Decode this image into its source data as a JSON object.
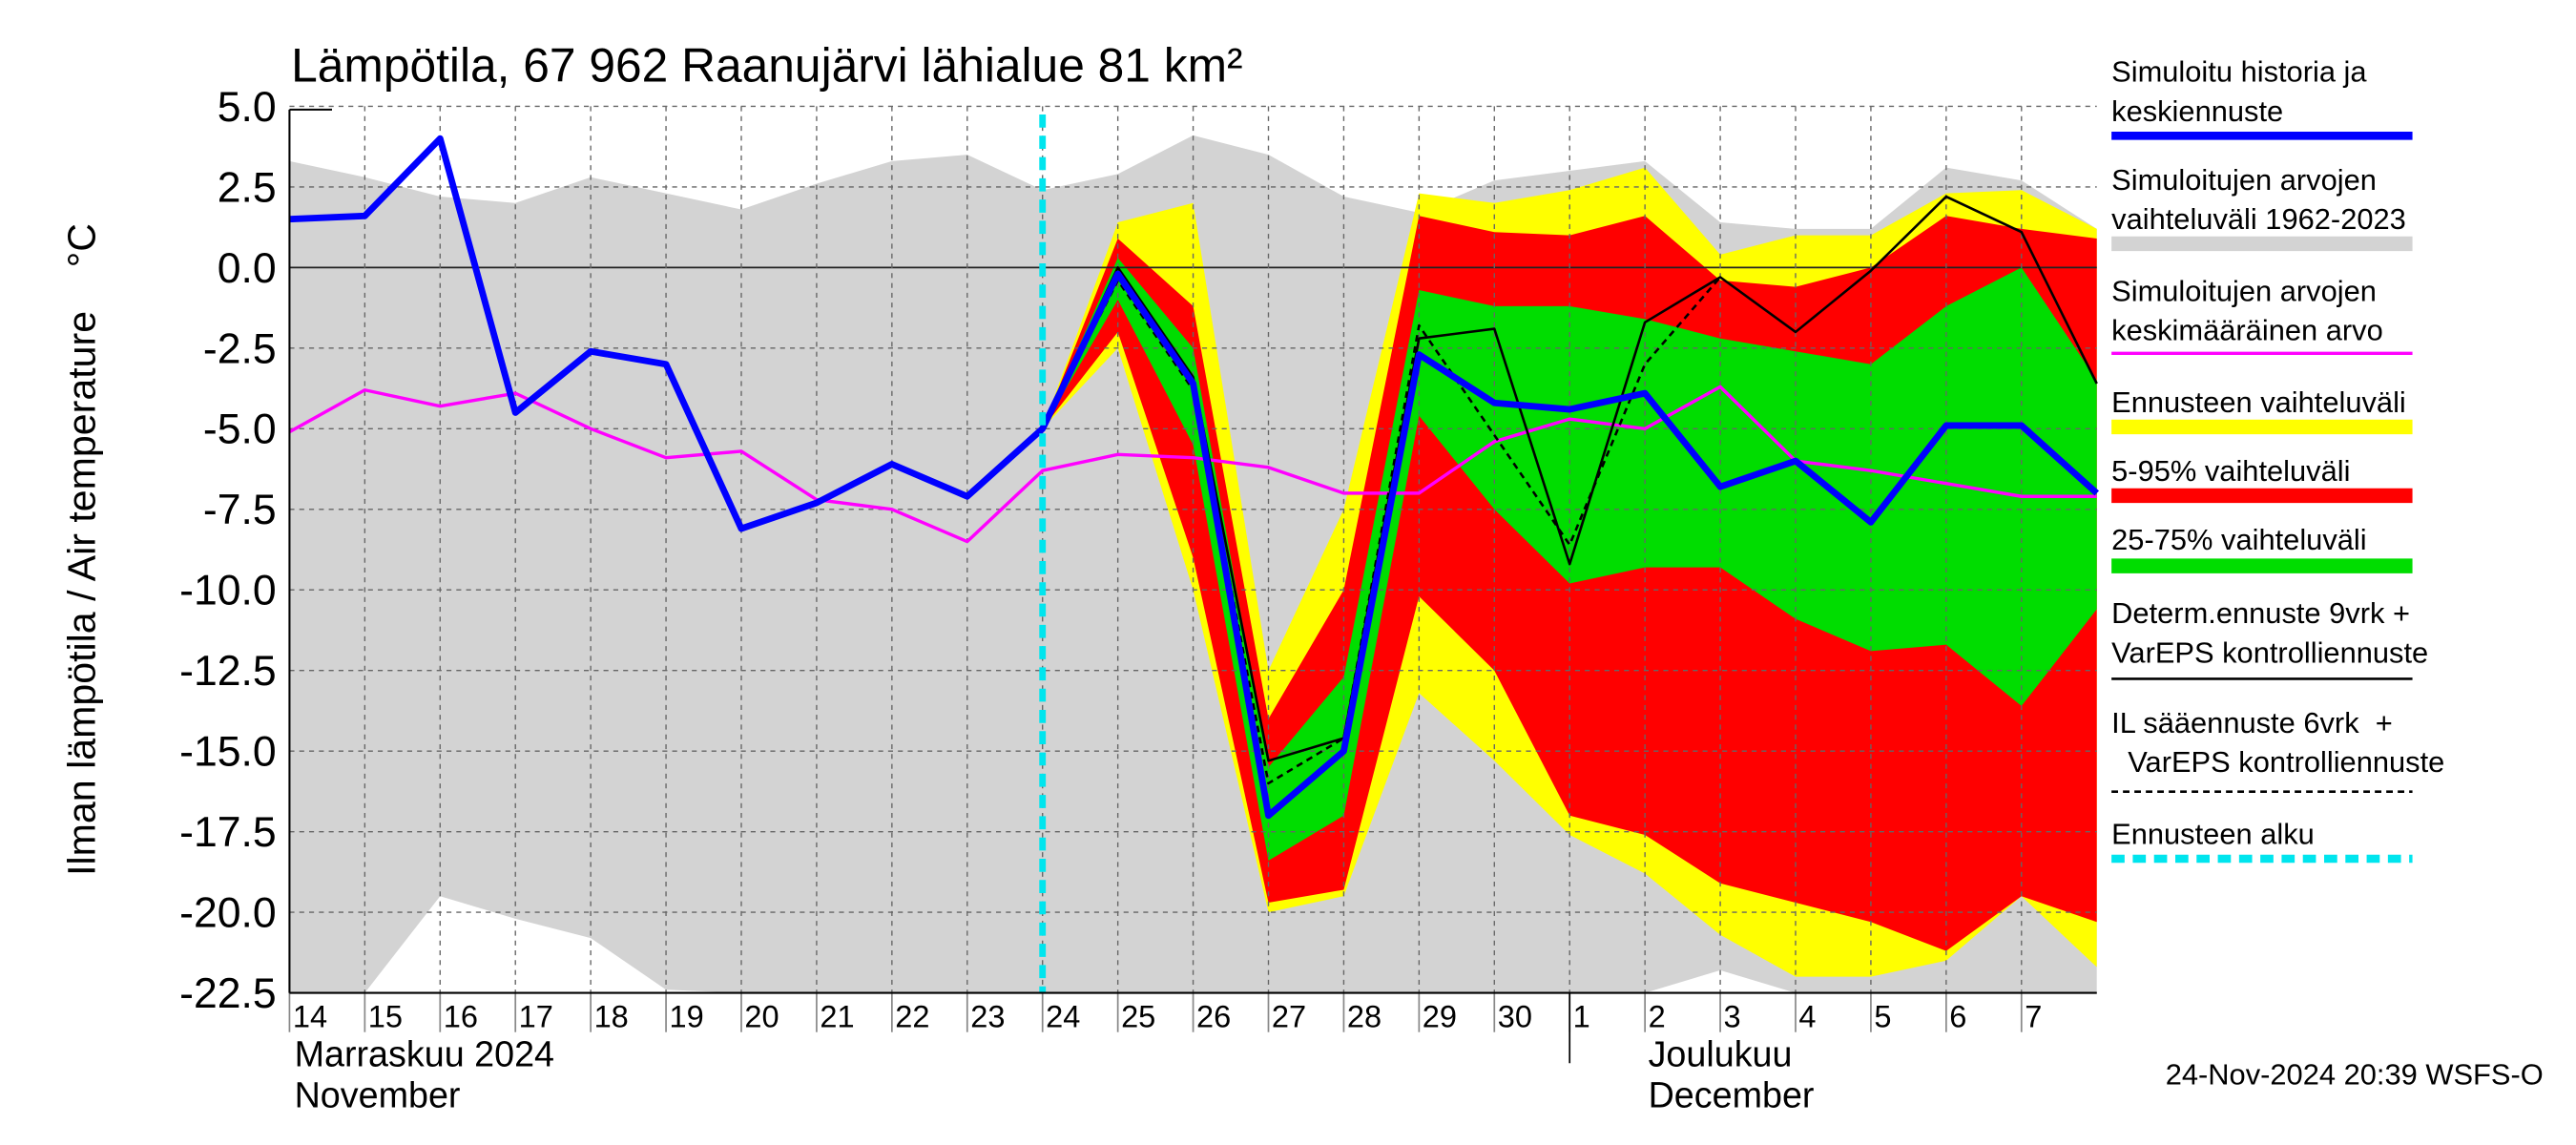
{
  "chart_data": {
    "type": "band-line",
    "title": "Lämpötila, 67 962 Raanujärvi lähialue 81 km²",
    "y_label": "Ilman lämpötila / Air temperature    °C",
    "x": [
      0,
      1,
      2,
      3,
      4,
      5,
      6,
      7,
      8,
      9,
      10,
      11,
      12,
      13,
      14,
      15,
      16,
      17,
      18,
      19,
      20,
      21,
      22,
      23,
      24
    ],
    "xlim": [
      0,
      24
    ],
    "xticks": [
      {
        "value": 0,
        "label": "14"
      },
      {
        "value": 1,
        "label": "15"
      },
      {
        "value": 2,
        "label": "16"
      },
      {
        "value": 3,
        "label": "17"
      },
      {
        "value": 4,
        "label": "18"
      },
      {
        "value": 5,
        "label": "19"
      },
      {
        "value": 6,
        "label": "20"
      },
      {
        "value": 7,
        "label": "21"
      },
      {
        "value": 8,
        "label": "22"
      },
      {
        "value": 9,
        "label": "23"
      },
      {
        "value": 10,
        "label": "24"
      },
      {
        "value": 11,
        "label": "25"
      },
      {
        "value": 12,
        "label": "26"
      },
      {
        "value": 13,
        "label": "27"
      },
      {
        "value": 14,
        "label": "28"
      },
      {
        "value": 15,
        "label": "29"
      },
      {
        "value": 16,
        "label": "30"
      },
      {
        "value": 17,
        "label": "1"
      },
      {
        "value": 18,
        "label": "2"
      },
      {
        "value": 19,
        "label": "3"
      },
      {
        "value": 20,
        "label": "4"
      },
      {
        "value": 21,
        "label": "5"
      },
      {
        "value": 22,
        "label": "6"
      },
      {
        "value": 23,
        "label": "7"
      }
    ],
    "ylim": [
      -22.5,
      5
    ],
    "yticks": [
      {
        "value": 5,
        "label": "5.0"
      },
      2.5,
      {
        "value": 0,
        "label": "0.0"
      },
      -2.5,
      {
        "value": -5,
        "label": "-5.0"
      },
      -7.5,
      {
        "value": -10,
        "label": "-10.0"
      },
      -12.5,
      {
        "value": -15,
        "label": "-15.0"
      },
      -17.5,
      {
        "value": -20,
        "label": "-20.0"
      },
      -22.5
    ],
    "grid": true,
    "month_labels": [
      [
        "Marraskuu 2024",
        "November"
      ],
      [
        "Joulukuu",
        "December"
      ]
    ],
    "timestamp": "24-Nov-2024 20:39 WSFS-O",
    "series": [
      {
        "name": [
          "Simuloitu historia ja",
          "keskiennuste"
        ],
        "kind": "line",
        "color": "#0000ff",
        "width": 4,
        "values": [
          1.5,
          1.6,
          4.0,
          -4.5,
          -2.6,
          -3.0,
          -8.1,
          -7.3,
          -6.1,
          -7.1,
          -5.0,
          -0.2,
          -3.6,
          -17.0,
          -15.0,
          -2.7,
          -4.2,
          -4.4,
          -3.9,
          -6.8,
          -6.0,
          -7.9,
          -4.9,
          -4.9,
          -7.0
        ]
      },
      {
        "name": [
          "Simuloitujen arvojen",
          "vaihteluväli 1962-2023"
        ],
        "kind": "band",
        "color": "#d3d3d3",
        "upper": [
          3.3,
          2.8,
          2.2,
          2.0,
          2.8,
          2.3,
          1.8,
          2.6,
          3.3,
          3.5,
          2.4,
          2.9,
          4.1,
          3.5,
          2.2,
          1.7,
          2.7,
          3.0,
          3.3,
          1.4,
          1.2,
          1.2,
          3.1,
          2.7,
          1.2
        ],
        "lower": [
          -22.5,
          -22.5,
          -19.5,
          -20.2,
          -20.8,
          -22.4,
          -22.5,
          -22.5,
          -22.5,
          -22.5,
          -22.5,
          -22.5,
          -22.5,
          -22.5,
          -22.5,
          -22.5,
          -22.5,
          -22.5,
          -22.5,
          -21.8,
          -22.5,
          -22.5,
          -22.5,
          -22.5,
          -22.5
        ]
      },
      {
        "name": [
          "Simuloitujen arvojen",
          "keskimääräinen arvo"
        ],
        "kind": "line",
        "color": "#ff00ff",
        "width": 2,
        "values": [
          -5.1,
          -3.8,
          -4.3,
          -3.9,
          -5.0,
          -5.9,
          -5.7,
          -7.2,
          -7.5,
          -8.5,
          -6.3,
          -5.8,
          -5.9,
          -6.2,
          -7.0,
          -7.0,
          -5.4,
          -4.7,
          -5.0,
          -3.7,
          -6.0,
          -6.3,
          -6.7,
          -7.1,
          -7.1
        ]
      },
      {
        "name": [
          "Ennusteen vaihteluväli"
        ],
        "kind": "band",
        "color": "#ffff00",
        "upper": [
          null,
          null,
          null,
          null,
          null,
          null,
          null,
          null,
          null,
          null,
          -5.0,
          1.4,
          2.0,
          -12.5,
          -7.5,
          2.3,
          2.0,
          2.4,
          3.1,
          0.4,
          1.0,
          1.0,
          2.3,
          2.4,
          1.2
        ],
        "lower": [
          null,
          null,
          null,
          null,
          null,
          null,
          null,
          null,
          null,
          null,
          -5.0,
          -2.5,
          -10.0,
          -20.0,
          -19.5,
          -13.2,
          -15.3,
          -17.6,
          -18.8,
          -20.7,
          -22.0,
          -22.0,
          -21.5,
          -19.5,
          -21.7
        ]
      },
      {
        "name": [
          "5-95% vaihteluväli"
        ],
        "kind": "band",
        "color": "#ff0000",
        "upper": [
          null,
          null,
          null,
          null,
          null,
          null,
          null,
          null,
          null,
          null,
          -5.0,
          0.9,
          -1.2,
          -14.0,
          -10.0,
          1.6,
          1.1,
          1.0,
          1.6,
          -0.4,
          -0.6,
          0.0,
          1.6,
          1.2,
          0.9
        ],
        "lower": [
          null,
          null,
          null,
          null,
          null,
          null,
          null,
          null,
          null,
          null,
          -5.0,
          -2.0,
          -9.0,
          -19.7,
          -19.3,
          -10.2,
          -12.5,
          -17.0,
          -17.6,
          -19.1,
          -19.7,
          -20.3,
          -21.2,
          -19.5,
          -20.3
        ]
      },
      {
        "name": [
          "25-75% vaihteluväli"
        ],
        "kind": "band",
        "color": "#00dd00",
        "upper": [
          null,
          null,
          null,
          null,
          null,
          null,
          null,
          null,
          null,
          null,
          -5.0,
          0.3,
          -2.5,
          -15.5,
          -12.7,
          -0.7,
          -1.2,
          -1.2,
          -1.6,
          -2.2,
          -2.6,
          -3.0,
          -1.2,
          0.0,
          -3.5
        ],
        "lower": [
          null,
          null,
          null,
          null,
          null,
          null,
          null,
          null,
          null,
          null,
          -5.0,
          -1.0,
          -5.5,
          -18.4,
          -17.0,
          -4.6,
          -7.5,
          -9.8,
          -9.3,
          -9.3,
          -10.9,
          -11.9,
          -11.7,
          -13.6,
          -10.6
        ]
      },
      {
        "name": [
          "Determ.ennuste 9vrk +",
          "VarEPS kontrolliennuste"
        ],
        "kind": "line",
        "color": "#000000",
        "width": 1.5,
        "values": [
          null,
          null,
          null,
          null,
          null,
          null,
          null,
          null,
          null,
          null,
          -5.0,
          0.0,
          -3.4,
          -15.3,
          -14.6,
          -2.2,
          -1.9,
          -9.2,
          -1.7,
          -0.3,
          -2.0,
          -0.1,
          2.2,
          1.1,
          -3.6
        ]
      },
      {
        "name": [
          "IL sääennuste 6vrk  +",
          "  VarEPS kontrolliennuste"
        ],
        "kind": "line",
        "color": "#000000",
        "width": 1.5,
        "dash": "4 3",
        "values": [
          null,
          null,
          null,
          null,
          null,
          null,
          null,
          null,
          null,
          null,
          -5.0,
          -0.4,
          -3.8,
          -16.0,
          -14.6,
          -1.8,
          -5.2,
          -8.6,
          -3.0,
          -0.3,
          null,
          null,
          null,
          null,
          null
        ]
      }
    ],
    "forecast_start": {
      "name": "Ennusteen alku",
      "x": 10,
      "color": "#00e5ee"
    }
  }
}
